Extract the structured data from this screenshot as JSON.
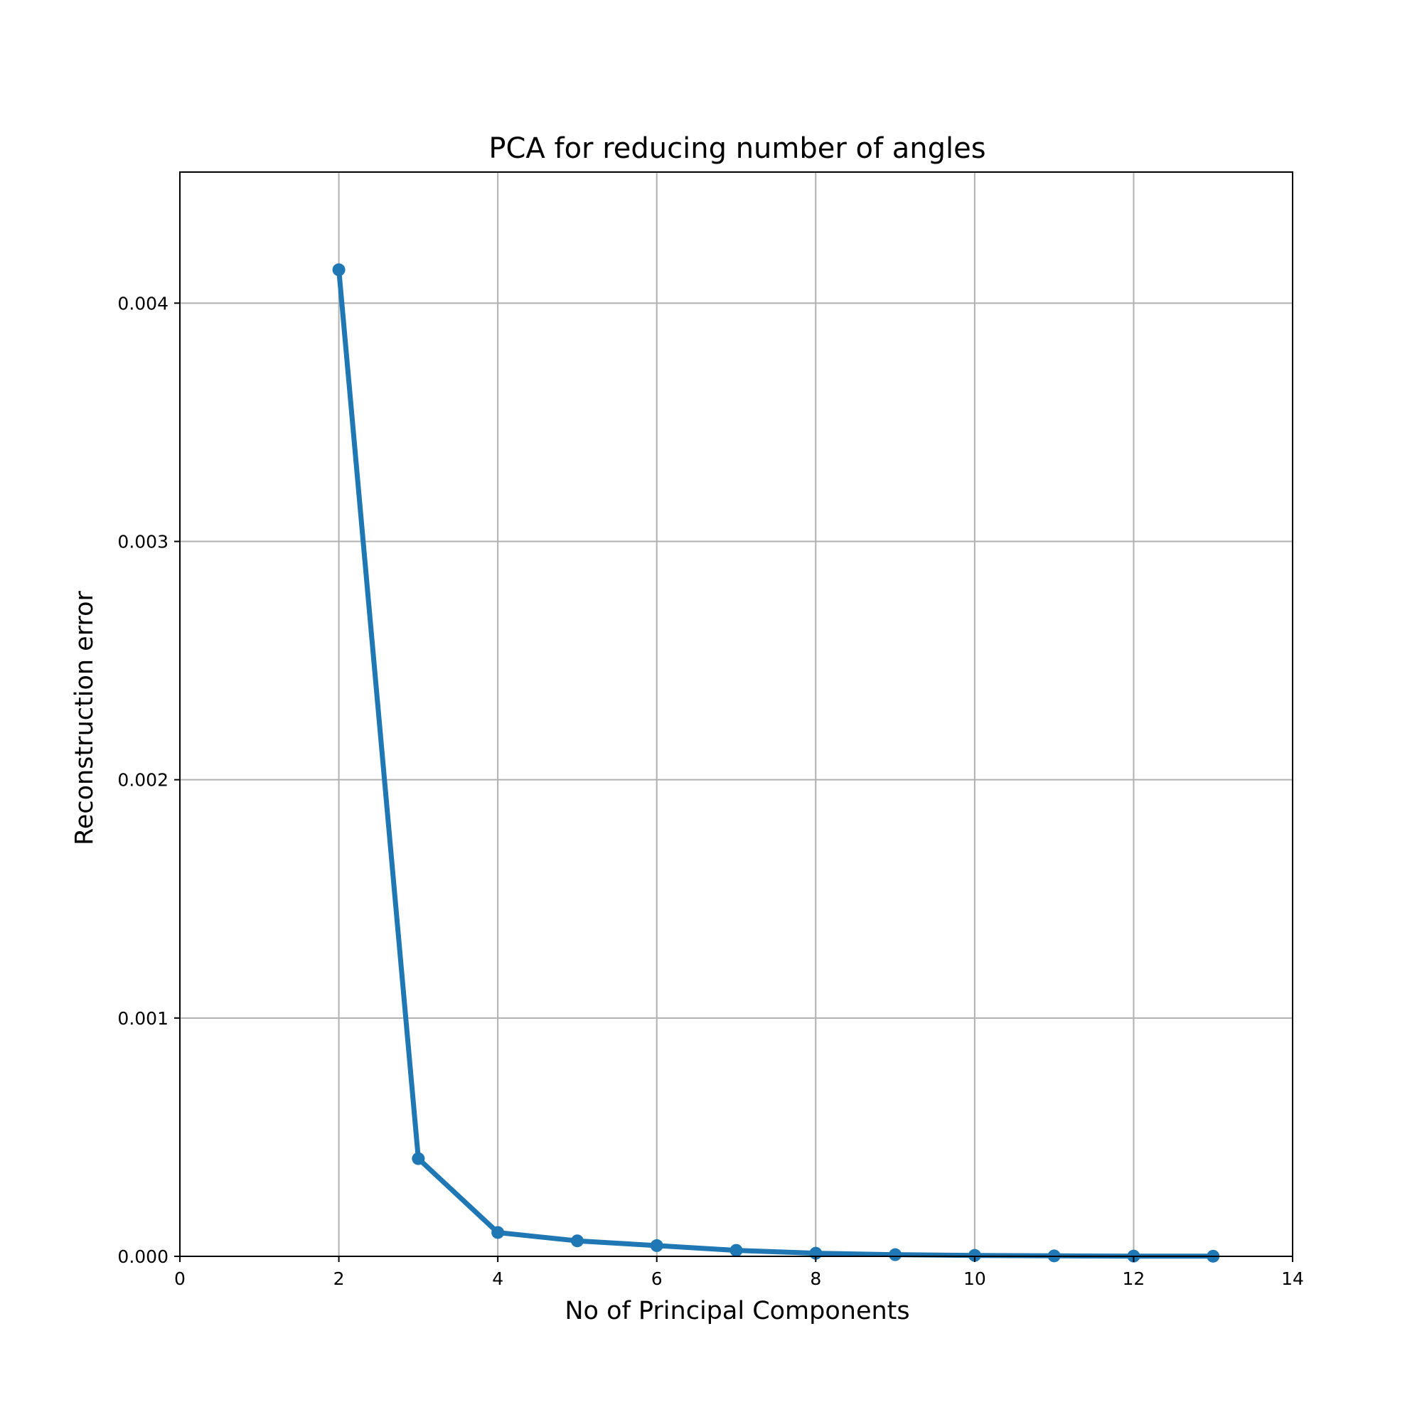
{
  "chart_data": {
    "type": "line",
    "title": "PCA for reducing number of angles",
    "xlabel": "No of Principal Components",
    "ylabel": "Reconstruction error",
    "xlim": [
      0,
      14
    ],
    "ylim": [
      0,
      0.00455
    ],
    "xticks": [
      0,
      2,
      4,
      6,
      8,
      10,
      12,
      14
    ],
    "xtick_labels": [
      "0",
      "2",
      "4",
      "6",
      "8",
      "10",
      "12",
      "14"
    ],
    "yticks": [
      0,
      0.001,
      0.002,
      0.003,
      0.004
    ],
    "ytick_labels": [
      "0.000",
      "0.001",
      "0.002",
      "0.003",
      "0.004"
    ],
    "grid": true,
    "series": [
      {
        "color": "#1f77b4",
        "marker": "circle",
        "x": [
          2,
          3,
          4,
          5,
          6,
          7,
          8,
          9,
          10,
          11,
          12,
          13
        ],
        "y": [
          0.00414,
          0.00041,
          0.0001,
          6.5e-05,
          4.5e-05,
          2.5e-05,
          1.3e-05,
          7e-06,
          4e-06,
          2e-06,
          1e-06,
          5e-07
        ]
      }
    ]
  }
}
